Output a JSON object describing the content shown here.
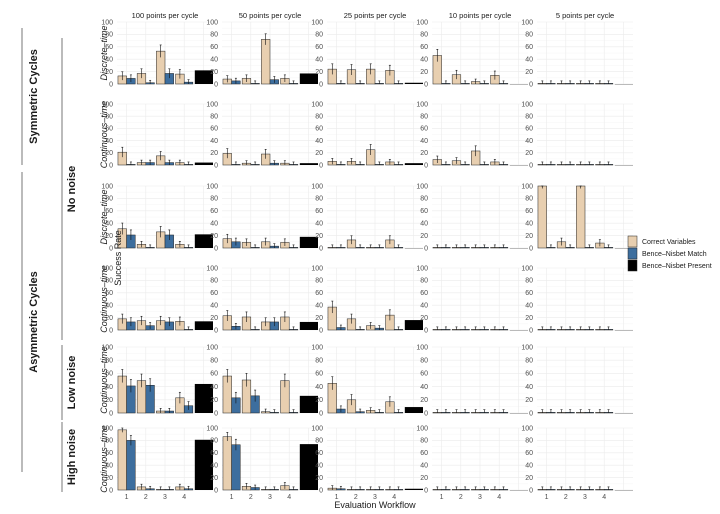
{
  "chart_data": {
    "type": "bar",
    "xlabel": "Evaluation Workflow",
    "ylabel": "Success Rate",
    "ylim": [
      0,
      100
    ],
    "yticks": [
      0,
      20,
      40,
      60,
      80,
      100
    ],
    "xticks": [
      "1",
      "2",
      "3",
      "4"
    ],
    "grid": true,
    "legend_position": "right",
    "legend": [
      {
        "name": "Correct Variables",
        "color": "#E8CFB0"
      },
      {
        "name": "Bence–Nisbet Match",
        "color": "#3D6E9E"
      },
      {
        "name": "Bence–Nisbet Present",
        "color": "#000000"
      }
    ],
    "columns": [
      "100 points per cycle",
      "50 points per cycle",
      "25 points per cycle",
      "10 points per cycle",
      "5 points per cycle"
    ],
    "outer_groups": [
      {
        "label": "Symmetric Cycles",
        "rows": [
          0,
          1
        ]
      },
      {
        "label": "Asymmetric Cycles",
        "rows": [
          2,
          3,
          4,
          5
        ]
      }
    ],
    "noise_groups": [
      {
        "label": "No noise",
        "rows": [
          0,
          1,
          2,
          3
        ]
      },
      {
        "label": "Low noise",
        "rows": [
          4
        ]
      },
      {
        "label": "High noise",
        "rows": [
          5
        ]
      }
    ],
    "rows": [
      {
        "label": "Discrete–time",
        "panels": [
          {
            "correct": [
              13,
              17,
              53,
              16
            ],
            "match": [
              9,
              2,
              17,
              3
            ],
            "present": 22
          },
          {
            "correct": [
              8,
              9,
              72,
              9
            ],
            "match": [
              5,
              1,
              7,
              1
            ],
            "present": 17
          },
          {
            "correct": [
              24,
              23,
              24,
              22
            ],
            "match": [
              1,
              1,
              1,
              1
            ],
            "present": 2
          },
          {
            "correct": [
              46,
              15,
              4,
              14
            ],
            "match": [
              1,
              1,
              1,
              1
            ],
            "present": 0
          },
          {
            "correct": [
              1,
              1,
              1,
              1
            ],
            "match": [
              1,
              1,
              1,
              1
            ],
            "present": 0
          }
        ]
      },
      {
        "label": "Continuous–time",
        "panels": [
          {
            "correct": [
              21,
              4,
              15,
              4
            ],
            "match": [
              1,
              4,
              4,
              1
            ],
            "present": 4
          },
          {
            "correct": [
              19,
              3,
              18,
              3
            ],
            "match": [
              1,
              1,
              3,
              1
            ],
            "present": 3
          },
          {
            "correct": [
              6,
              6,
              25,
              5
            ],
            "match": [
              1,
              1,
              1,
              1
            ],
            "present": 3
          },
          {
            "correct": [
              9,
              7,
              23,
              5
            ],
            "match": [
              1,
              1,
              1,
              1
            ],
            "present": 0
          },
          {
            "correct": [
              1,
              1,
              1,
              1
            ],
            "match": [
              1,
              1,
              1,
              1
            ],
            "present": 0
          }
        ]
      },
      {
        "label": "Discrete–time",
        "panels": [
          {
            "correct": [
              31,
              6,
              26,
              6
            ],
            "match": [
              21,
              1,
              21,
              1
            ],
            "present": 22
          },
          {
            "correct": [
              15,
              9,
              10,
              9
            ],
            "match": [
              10,
              1,
              3,
              1
            ],
            "present": 18
          },
          {
            "correct": [
              1,
              13,
              1,
              13
            ],
            "match": [
              1,
              1,
              1,
              1
            ],
            "present": 0
          },
          {
            "correct": [
              1,
              1,
              1,
              1
            ],
            "match": [
              1,
              1,
              1,
              1
            ],
            "present": 0
          },
          {
            "correct": [
              100,
              10,
              100,
              8
            ],
            "match": [
              1,
              1,
              1,
              1
            ],
            "present": 0
          }
        ]
      },
      {
        "label": "Continuous–time",
        "panels": [
          {
            "correct": [
              18,
              15,
              15,
              14
            ],
            "match": [
              13,
              7,
              13,
              1
            ],
            "present": 14
          },
          {
            "correct": [
              23,
              21,
              13,
              21
            ],
            "match": [
              6,
              1,
              13,
              1
            ],
            "present": 13
          },
          {
            "correct": [
              37,
              18,
              7,
              24
            ],
            "match": [
              4,
              1,
              3,
              1
            ],
            "present": 16
          },
          {
            "correct": [
              1,
              1,
              1,
              1
            ],
            "match": [
              1,
              1,
              1,
              1
            ],
            "present": 0
          },
          {
            "correct": [
              1,
              1,
              1,
              1
            ],
            "match": [
              1,
              1,
              1,
              1
            ],
            "present": 0
          }
        ]
      },
      {
        "label": "Continuous–time",
        "panels": [
          {
            "correct": [
              56,
              49,
              3,
              23
            ],
            "match": [
              41,
              42,
              3,
              11
            ],
            "present": 44
          },
          {
            "correct": [
              56,
              50,
              2,
              49
            ],
            "match": [
              23,
              26,
              1,
              1
            ],
            "present": 26
          },
          {
            "correct": [
              45,
              20,
              4,
              17
            ],
            "match": [
              6,
              2,
              1,
              1
            ],
            "present": 9
          },
          {
            "correct": [
              1,
              1,
              1,
              1
            ],
            "match": [
              1,
              1,
              1,
              1
            ],
            "present": 0
          },
          {
            "correct": [
              1,
              1,
              1,
              1
            ],
            "match": [
              1,
              1,
              1,
              1
            ],
            "present": 0
          }
        ]
      },
      {
        "label": "Continuous–time",
        "panels": [
          {
            "correct": [
              97,
              5,
              1,
              5
            ],
            "match": [
              80,
              2,
              1,
              2
            ],
            "present": 81
          },
          {
            "correct": [
              86,
              6,
              1,
              7
            ],
            "match": [
              73,
              4,
              1,
              1
            ],
            "present": 74
          },
          {
            "correct": [
              3,
              1,
              1,
              1
            ],
            "match": [
              2,
              1,
              1,
              1
            ],
            "present": 2
          },
          {
            "correct": [
              1,
              1,
              1,
              1
            ],
            "match": [
              1,
              1,
              1,
              1
            ],
            "present": 0
          },
          {
            "correct": [
              1,
              1,
              1,
              1
            ],
            "match": [
              1,
              1,
              1,
              1
            ],
            "present": 0
          }
        ]
      }
    ]
  }
}
